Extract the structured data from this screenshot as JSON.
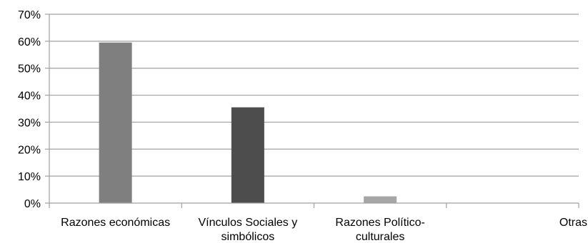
{
  "chart_data": {
    "type": "bar",
    "categories": [
      "Razones económicas",
      "Vínculos Sociales y simbólicos",
      "Razones Político-culturales",
      "Otras"
    ],
    "category_label_lines": [
      [
        "Razones económicas"
      ],
      [
        "Vínculos Sociales y",
        "simbólicos"
      ],
      [
        "Razones Político-",
        "culturales"
      ],
      [
        "Otras"
      ]
    ],
    "values": [
      59.5,
      35.5,
      2.5,
      0
    ],
    "colors": [
      "#7f7f7f",
      "#4d4d4d",
      "#a6a6a6",
      "#bfbfbf"
    ],
    "ylim": [
      0,
      70
    ],
    "yticks": [
      0,
      10,
      20,
      30,
      40,
      50,
      60,
      70
    ],
    "ytick_labels": [
      "0%",
      "10%",
      "20%",
      "30%",
      "40%",
      "50%",
      "60%",
      "70%"
    ],
    "title": "",
    "xlabel": "",
    "ylabel": "",
    "grid": true,
    "gridline_color": "#a0a0a0",
    "axis_color": "#a0a0a0"
  }
}
